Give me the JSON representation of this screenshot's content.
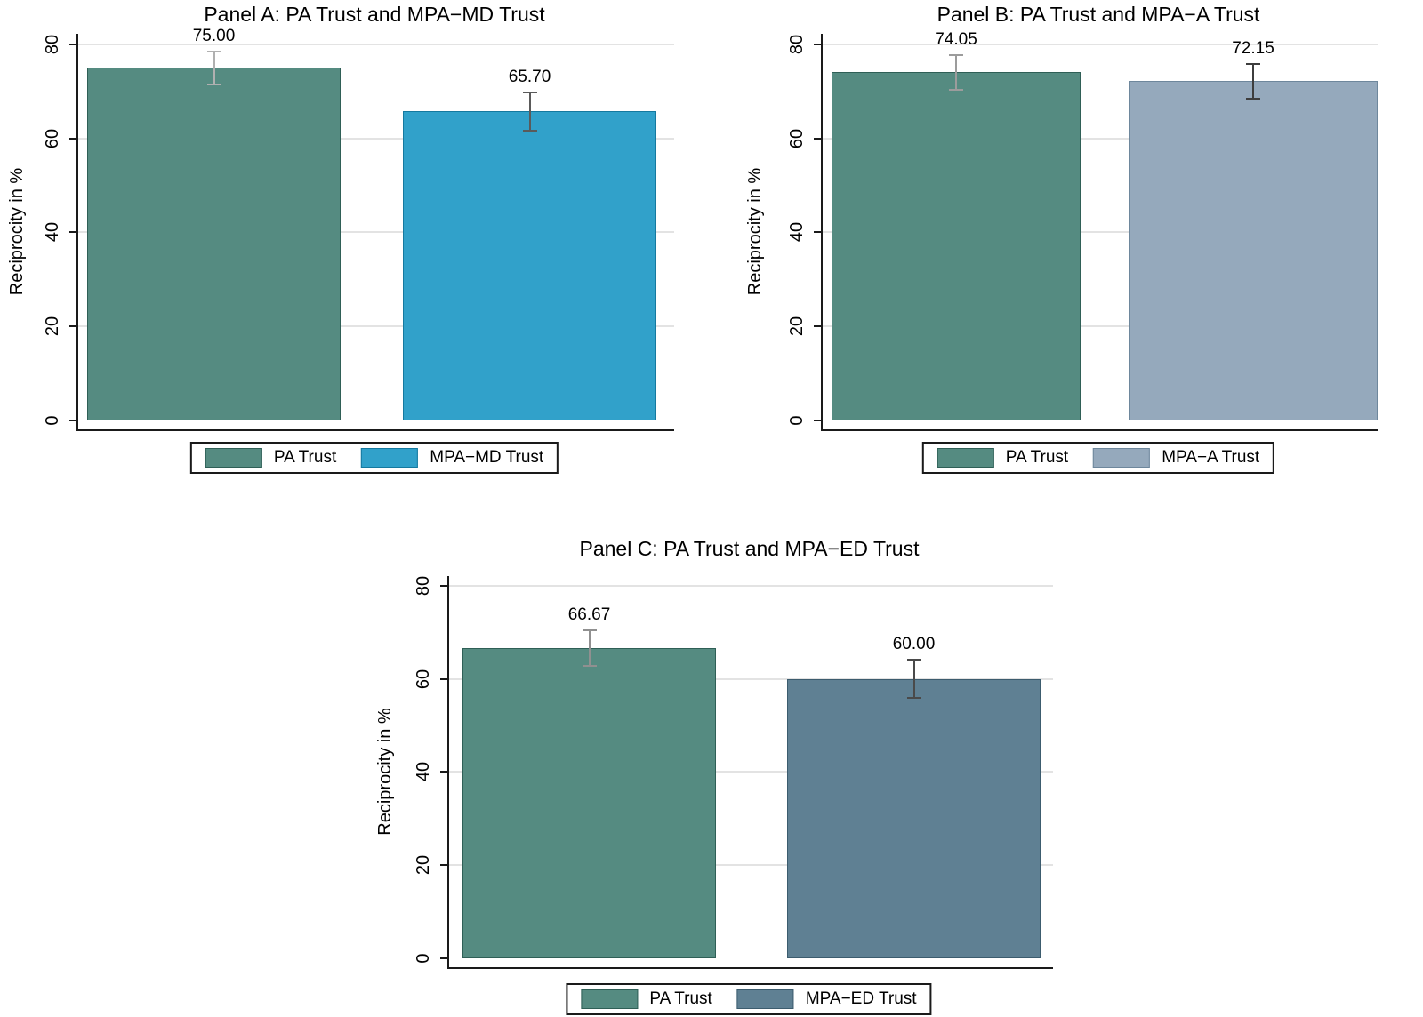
{
  "figure": {
    "background": "#ffffff",
    "axis_color": "#1a1a1a",
    "grid_color": "#e3e3e3",
    "text_color": "#000000"
  },
  "chart_data": [
    {
      "type": "bar",
      "panel": "A",
      "title": "Panel A: PA Trust and MPA−MD Trust",
      "xlabel": "",
      "ylabel": "Reciprocity in %",
      "ylim": [
        0,
        82
      ],
      "yticks": [
        0,
        20,
        40,
        60,
        80
      ],
      "grid": true,
      "legend_position": "bottom",
      "bars": [
        {
          "name": "PA Trust",
          "value": 75.0,
          "label": "75.00",
          "ci_low": 71.7,
          "ci_high": 78.3,
          "color": "#558b81",
          "border_color": "#2f5f56",
          "error_color": "#b0b0b0"
        },
        {
          "name": "MPA−MD Trust",
          "value": 65.7,
          "label": "65.70",
          "ci_low": 61.9,
          "ci_high": 69.5,
          "color": "#31a1ca",
          "border_color": "#15799f",
          "error_color": "#5a5a5a"
        }
      ],
      "legend": [
        "PA Trust",
        "MPA−MD Trust"
      ]
    },
    {
      "type": "bar",
      "panel": "B",
      "title": "Panel B: PA Trust and MPA−A Trust",
      "xlabel": "",
      "ylabel": "Reciprocity in %",
      "ylim": [
        0,
        82
      ],
      "yticks": [
        0,
        20,
        40,
        60,
        80
      ],
      "grid": true,
      "legend_position": "bottom",
      "bars": [
        {
          "name": "PA Trust",
          "value": 74.05,
          "label": "74.05",
          "ci_low": 70.6,
          "ci_high": 77.5,
          "color": "#558b81",
          "border_color": "#2f5f56",
          "error_color": "#9c9c9c"
        },
        {
          "name": "MPA−A Trust",
          "value": 72.15,
          "label": "72.15",
          "ci_low": 68.6,
          "ci_high": 75.7,
          "color": "#95a9bc",
          "border_color": "#6e879c",
          "error_color": "#3d3d3d"
        }
      ],
      "legend": [
        "PA Trust",
        "MPA−A Trust"
      ]
    },
    {
      "type": "bar",
      "panel": "C",
      "title": "Panel C: PA Trust and MPA−ED Trust",
      "xlabel": "",
      "ylabel": "Reciprocity in %",
      "ylim": [
        0,
        82
      ],
      "yticks": [
        0,
        20,
        40,
        60,
        80
      ],
      "grid": true,
      "legend_position": "bottom",
      "bars": [
        {
          "name": "PA Trust",
          "value": 66.67,
          "label": "66.67",
          "ci_low": 63.0,
          "ci_high": 70.3,
          "color": "#558b81",
          "border_color": "#2f5f56",
          "error_color": "#909090"
        },
        {
          "name": "MPA−ED Trust",
          "value": 60.0,
          "label": "60.00",
          "ci_low": 56.1,
          "ci_high": 63.9,
          "color": "#5f8093",
          "border_color": "#3c5c6e",
          "error_color": "#4a4a4a"
        }
      ],
      "legend": [
        "PA Trust",
        "MPA−ED Trust"
      ]
    }
  ]
}
